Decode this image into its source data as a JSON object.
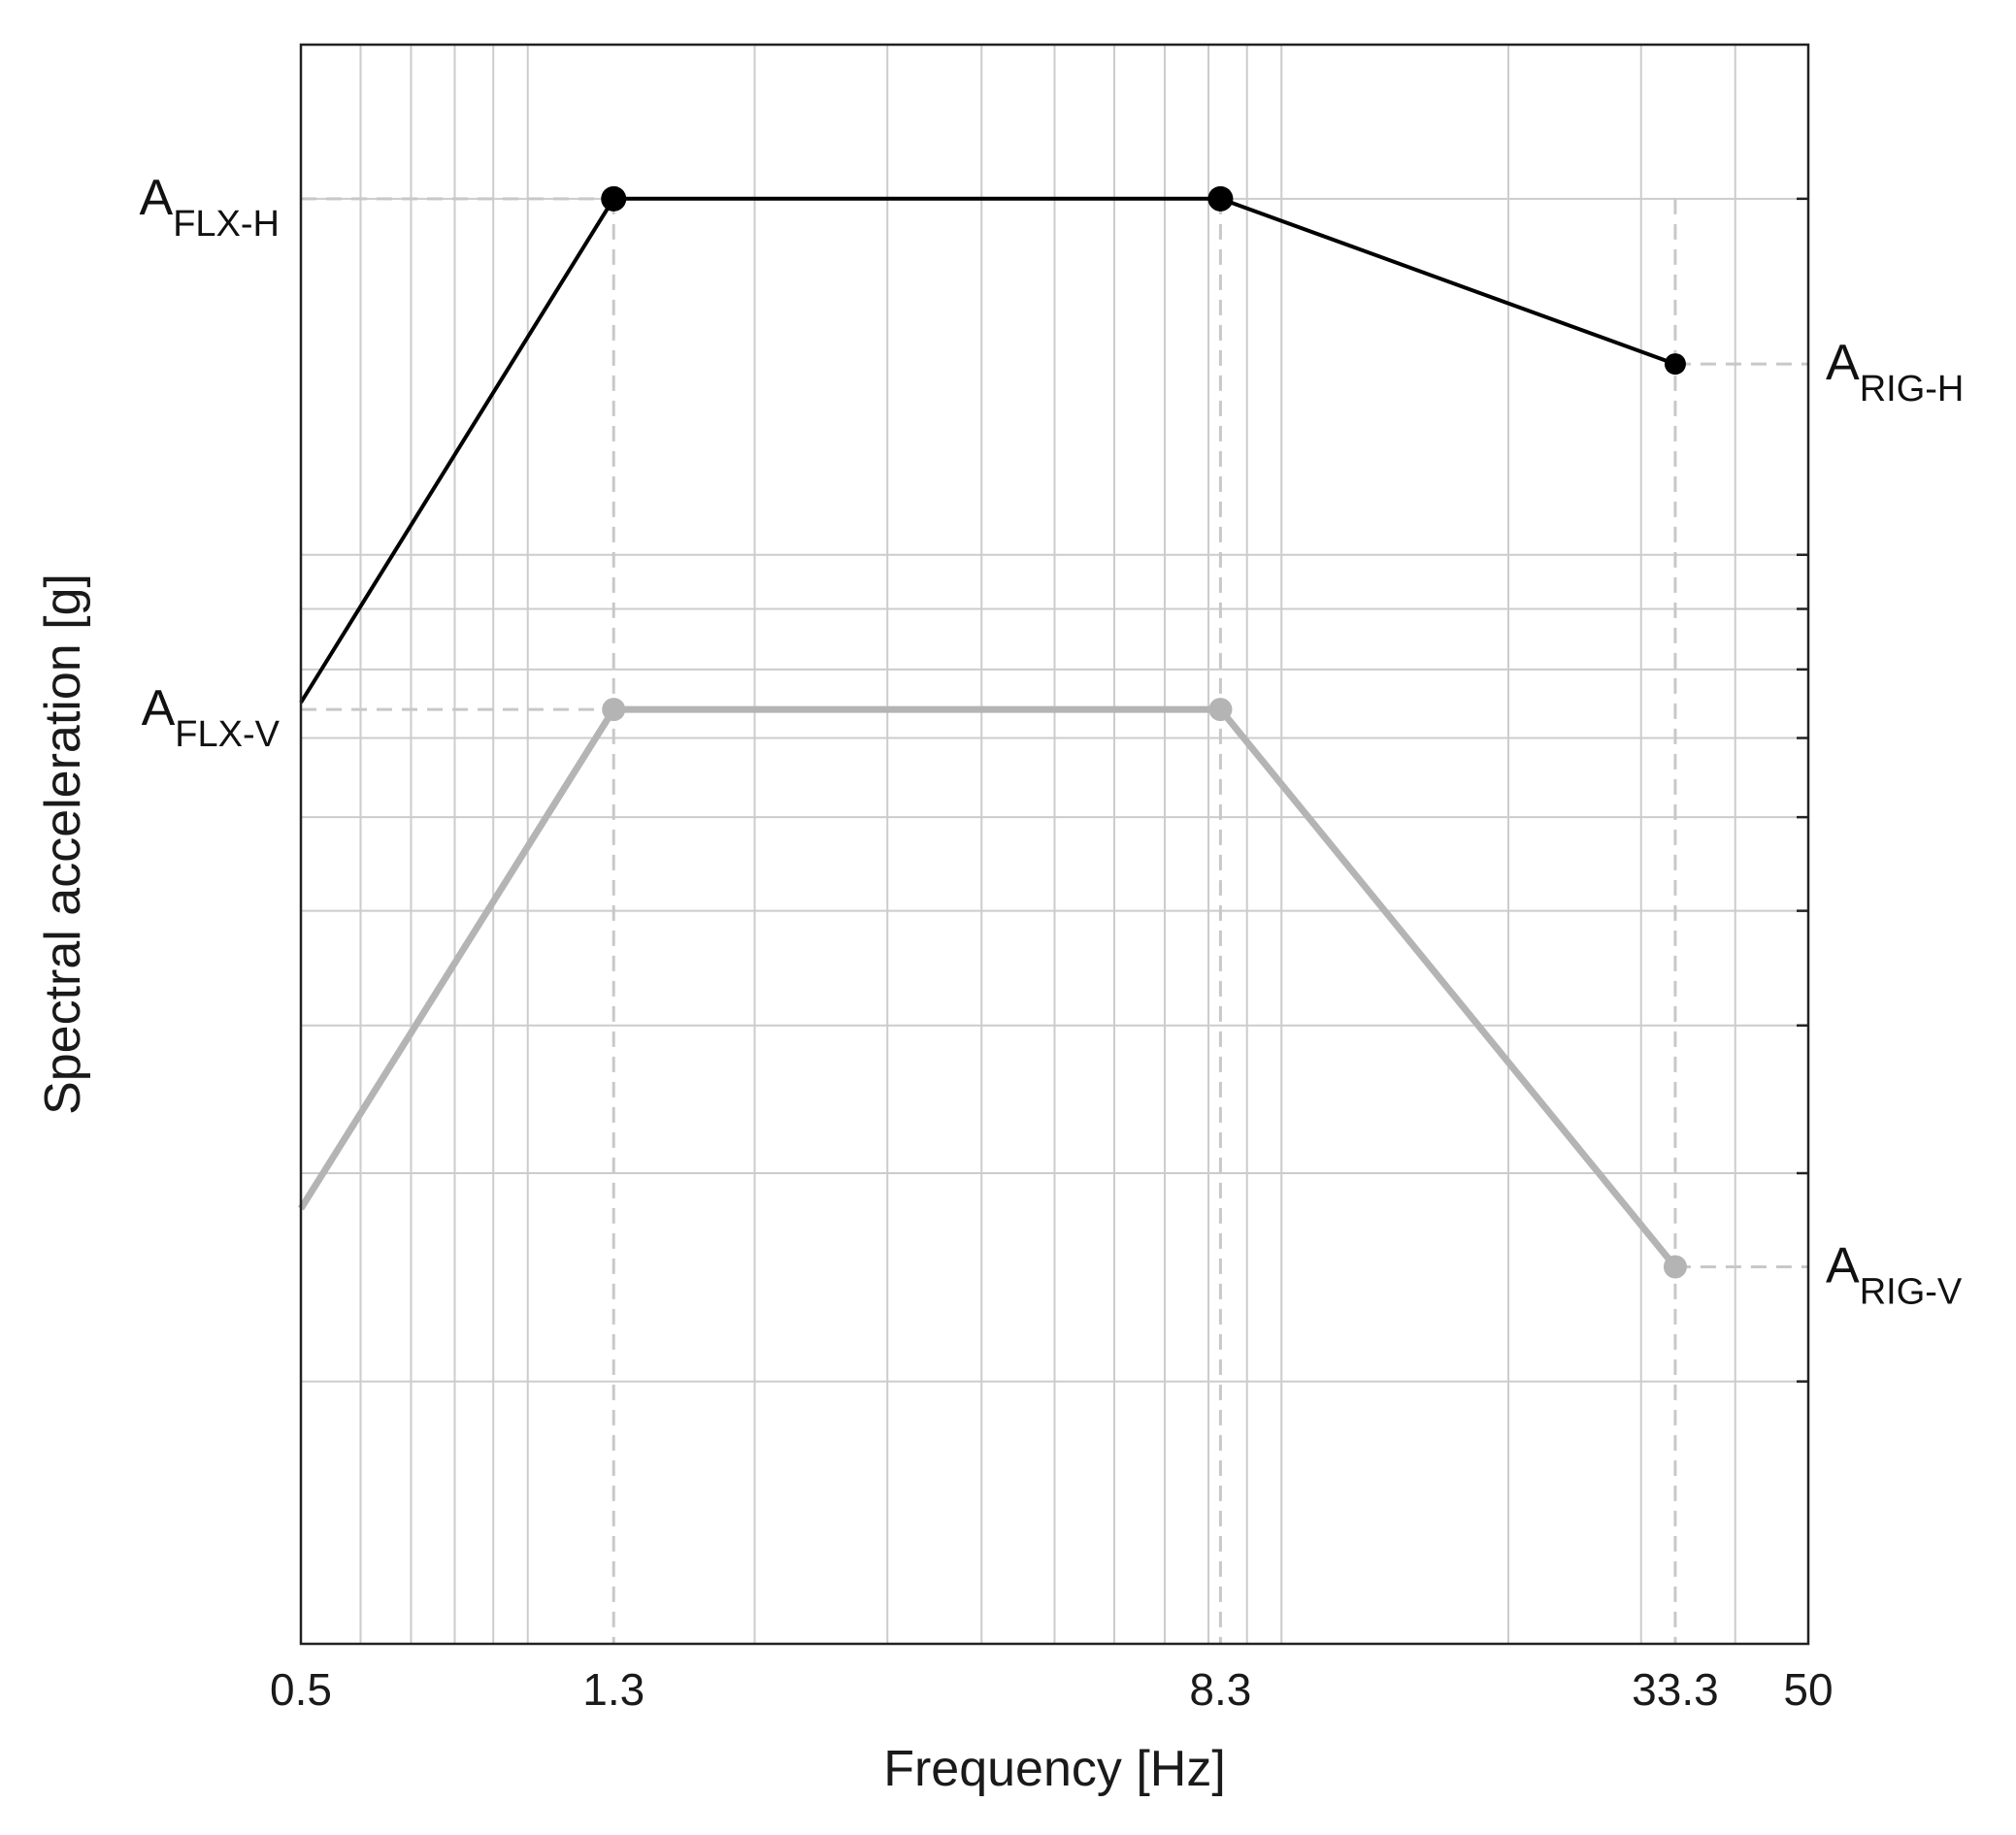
{
  "chart_data": {
    "type": "line",
    "xlabel": "Frequency [Hz]",
    "ylabel": "Spectral acceleration [g]",
    "xscale": "log",
    "yscale": "log",
    "xlim": [
      0.5,
      50
    ],
    "ylim": [
      0.12,
      2.7
    ],
    "grid": true,
    "x_ticks": [
      {
        "value": 0.5,
        "label": "0.5"
      },
      {
        "value": 1.3,
        "label": "1.3"
      },
      {
        "value": 8.3,
        "label": "8.3"
      },
      {
        "value": 33.3,
        "label": "33.3"
      },
      {
        "value": 50,
        "label": "50"
      }
    ],
    "series": [
      {
        "color": "#000000",
        "x": [
          0.5,
          1.3,
          8.3,
          33.3
        ],
        "y": [
          0.75,
          2.0,
          2.0,
          1.45
        ],
        "markers_at": [
          1.3,
          8.3,
          33.3
        ]
      },
      {
        "color": "#b4b4b4",
        "x": [
          0.5,
          1.3,
          8.3,
          33.3
        ],
        "y": [
          0.28,
          0.74,
          0.74,
          0.25
        ],
        "markers_at": [
          1.3,
          8.3,
          33.3
        ]
      }
    ],
    "annotations": [
      {
        "main": "A",
        "sub": "FLX-H",
        "side": "left",
        "x": 1.3,
        "y": 2.0
      },
      {
        "main": "A",
        "sub": "FLX-V",
        "side": "left",
        "x": 1.3,
        "y": 0.74
      },
      {
        "main": "A",
        "sub": "RIG-H",
        "side": "right",
        "x": 33.3,
        "y": 1.45
      },
      {
        "main": "A",
        "sub": "RIG-V",
        "side": "right",
        "x": 33.3,
        "y": 0.25
      }
    ]
  }
}
